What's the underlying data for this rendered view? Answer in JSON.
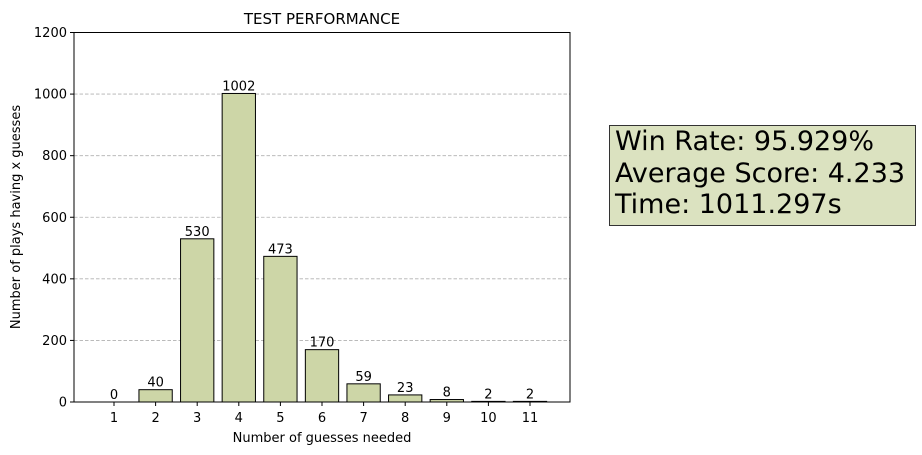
{
  "chart_data": {
    "type": "bar",
    "title": "TEST PERFORMANCE",
    "xlabel": "Number of guesses needed",
    "ylabel": "Number of plays having x guesses",
    "categories": [
      "1",
      "2",
      "3",
      "4",
      "5",
      "6",
      "7",
      "8",
      "9",
      "10",
      "11"
    ],
    "values": [
      0,
      40,
      530,
      1002,
      473,
      170,
      59,
      23,
      8,
      2,
      2
    ],
    "data_labels": [
      "0",
      "40",
      "530",
      "1002",
      "473",
      "170",
      "59",
      "23",
      "8",
      "2",
      "2"
    ],
    "ylim": [
      0,
      1200
    ],
    "yticks": [
      "0",
      "200",
      "400",
      "600",
      "800",
      "1000",
      "1200"
    ],
    "grid": "y-dashed",
    "bar_color": "#cdd6a7",
    "bar_edge_color": "#000000"
  },
  "stats": {
    "win_rate": "Win Rate: 95.929%",
    "average_score": "Average Score: 4.233",
    "time": "Time: 1011.297s",
    "box_color": "#dbe2c0"
  }
}
